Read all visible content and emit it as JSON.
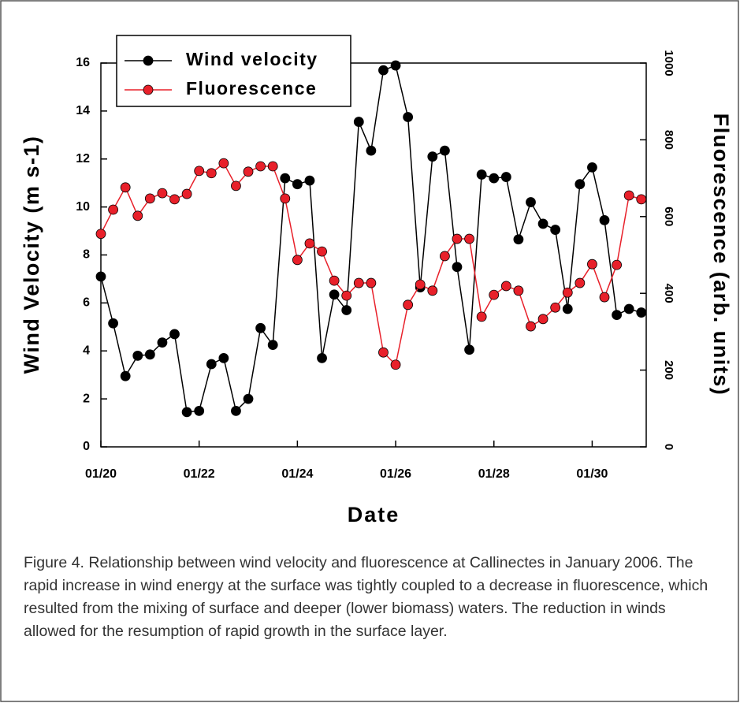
{
  "chart_data": {
    "type": "line",
    "x_label": "Date",
    "y_label": "Wind Velocity (m s-1)",
    "y2_label": "Fluorescence (arb. units)",
    "x": [
      20,
      20.25,
      20.5,
      20.75,
      21,
      21.25,
      21.5,
      21.75,
      22,
      22.25,
      22.5,
      22.75,
      23,
      23.25,
      23.5,
      23.75,
      24,
      24.25,
      24.5,
      24.75,
      25,
      25.25,
      25.5,
      25.75,
      26,
      26.25,
      26.5,
      26.75,
      27,
      27.25,
      27.5,
      27.75,
      28,
      28.25,
      28.5,
      28.75,
      29,
      29.25,
      29.5,
      29.75,
      30,
      30.25,
      30.5,
      30.75,
      31
    ],
    "xlim": [
      20,
      31.1
    ],
    "xticks": [
      {
        "value": 20,
        "label": "01/20"
      },
      {
        "value": 22,
        "label": "01/22"
      },
      {
        "value": 24,
        "label": "01/24"
      },
      {
        "value": 26,
        "label": "01/26"
      },
      {
        "value": 28,
        "label": "01/28"
      },
      {
        "value": 30,
        "label": "01/30"
      }
    ],
    "ylim": [
      0,
      16
    ],
    "yticks": [
      0,
      2,
      4,
      6,
      8,
      10,
      12,
      14,
      16
    ],
    "y2lim": [
      0,
      1000
    ],
    "y2ticks": [
      0,
      200,
      400,
      600,
      800,
      1000
    ],
    "legend": "upper left",
    "series": [
      {
        "name": "Wind velocity",
        "color": "#000000",
        "values": [
          7.1,
          5.15,
          2.95,
          3.8,
          3.85,
          4.35,
          4.7,
          1.45,
          1.5,
          3.45,
          3.7,
          1.5,
          2.0,
          4.95,
          4.25,
          11.2,
          10.95,
          11.1,
          3.7,
          6.35,
          5.7,
          13.55,
          12.35,
          15.7,
          15.9,
          13.75,
          6.65,
          12.1,
          12.35,
          7.5,
          4.05,
          11.35,
          11.2,
          11.25,
          8.65,
          10.2,
          9.3,
          9.05,
          5.75,
          10.95,
          11.65,
          9.45,
          5.5,
          5.75,
          5.6
        ]
      },
      {
        "name": "Fluorescence",
        "color": "#e8202a",
        "axis": "y2",
        "values": [
          555,
          618,
          676,
          602,
          647,
          661,
          645,
          659,
          719,
          713,
          739,
          680,
          717,
          731,
          731,
          647,
          487,
          530,
          509,
          433,
          394,
          427,
          427,
          246,
          214,
          370,
          423,
          407,
          497,
          542,
          542,
          339,
          396,
          419,
          407,
          314,
          333,
          363,
          402,
          427,
          476,
          390,
          474,
          655,
          645
        ]
      }
    ]
  },
  "caption": "Figure 4.  Relationship between wind velocity and fluorescence at Callinectes in January 2006. The rapid increase in wind energy at the surface was tightly coupled to a decrease in fluorescence, which resulted from the mixing of surface and deeper (lower biomass) waters. The reduction in winds allowed for the resumption of rapid growth in the surface layer."
}
